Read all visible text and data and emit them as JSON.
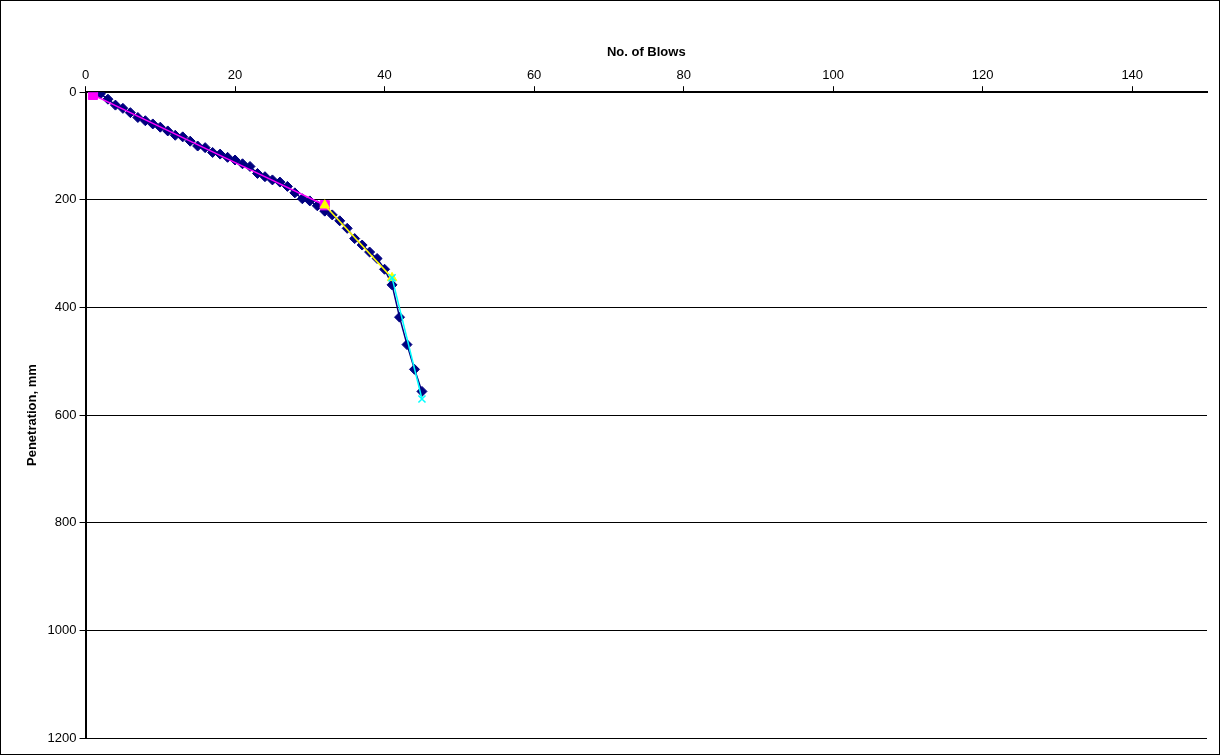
{
  "chart_data": {
    "type": "scatter",
    "xlabel": "No. of Blows",
    "ylabel": "Penetration, mm",
    "xlim": [
      0,
      150
    ],
    "xticks": [
      0,
      20,
      40,
      60,
      80,
      100,
      120,
      140
    ],
    "ylim": [
      1200,
      0
    ],
    "yticks": [
      0,
      200,
      400,
      600,
      800,
      1000,
      1200
    ],
    "grid": "y",
    "line_style": "solid",
    "series": [
      {
        "type": "line",
        "marker": "diamond",
        "color": "#000080",
        "x": [
          1,
          2,
          3,
          4,
          5,
          6,
          7,
          8,
          9,
          10,
          11,
          12,
          13,
          14,
          15,
          16,
          17,
          18,
          19,
          20,
          21,
          22,
          23,
          24,
          25,
          26,
          27,
          28,
          29,
          30,
          31,
          32,
          33,
          34,
          35,
          36,
          37,
          38,
          39,
          40,
          41,
          42,
          43,
          44,
          45
        ],
        "values": [
          0,
          3,
          13,
          24,
          30,
          38,
          47,
          53,
          59,
          65,
          72,
          80,
          83,
          91,
          100,
          103,
          112,
          115,
          121,
          126,
          133,
          138,
          151,
          157,
          163,
          167,
          175,
          187,
          198,
          202,
          211,
          221,
          228,
          239,
          253,
          272,
          284,
          297,
          309,
          329,
          358,
          418,
          469,
          515,
          556
        ]
      },
      {
        "type": "line",
        "marker": "square",
        "color": "#ff00ff",
        "x": [
          1,
          32
        ],
        "values": [
          5,
          210
        ]
      },
      {
        "type": "line",
        "marker": "triangle",
        "color": "#ffff00",
        "x": [
          32,
          41
        ],
        "values": [
          210,
          345
        ]
      },
      {
        "type": "line",
        "marker": "cross",
        "color": "#00ffff",
        "x": [
          41,
          45
        ],
        "values": [
          345,
          570
        ]
      }
    ]
  }
}
